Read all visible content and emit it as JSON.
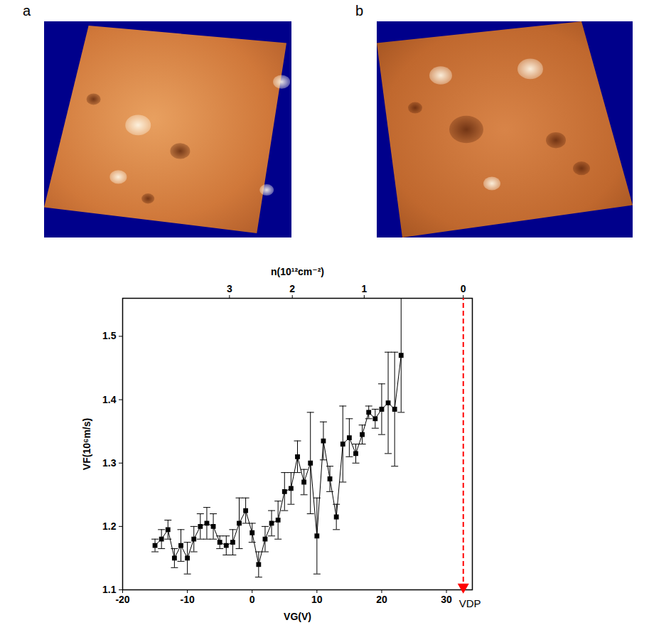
{
  "panels": [
    {
      "label": "a"
    },
    {
      "label": "b"
    }
  ],
  "chart_data": {
    "type": "scatter",
    "xlabel": "VG(V)",
    "ylabel": "VF(10⁶m/s)",
    "x2label": "n(10¹²cm⁻²)",
    "xlim": [
      -20,
      34
    ],
    "xticks": [
      -20,
      -10,
      0,
      10,
      20,
      30
    ],
    "x2ticks": [
      {
        "value": -3.5,
        "label": "3"
      },
      {
        "value": 6.2,
        "label": "2"
      },
      {
        "value": 17.3,
        "label": "1"
      },
      {
        "value": 32.6,
        "label": "0"
      }
    ],
    "ylim": [
      1.1,
      1.56
    ],
    "yticks": [
      1.1,
      1.2,
      1.3,
      1.4,
      1.5
    ],
    "series": [
      {
        "name": "VF",
        "color": "#000000",
        "marker": "square",
        "line_style": "solid",
        "x": [
          -15,
          -14,
          -13,
          -12,
          -11,
          -10,
          -9,
          -8,
          -7,
          -6,
          -5,
          -4,
          -3,
          -2,
          -1,
          0,
          1,
          2,
          3,
          4,
          5,
          6,
          7,
          8,
          9,
          10,
          11,
          12,
          13,
          14,
          15,
          16,
          17,
          18,
          19,
          20,
          21,
          22,
          23
        ],
        "values": [
          1.17,
          1.18,
          1.195,
          1.15,
          1.17,
          1.15,
          1.18,
          1.2,
          1.205,
          1.2,
          1.175,
          1.17,
          1.175,
          1.205,
          1.225,
          1.19,
          1.14,
          1.18,
          1.205,
          1.21,
          1.255,
          1.26,
          1.31,
          1.27,
          1.3,
          1.185,
          1.335,
          1.275,
          1.215,
          1.33,
          1.34,
          1.315,
          1.345,
          1.38,
          1.37,
          1.385,
          1.395,
          1.385,
          1.47
        ],
        "error": [
          0.01,
          0.015,
          0.015,
          0.015,
          0.025,
          0.025,
          0.02,
          0.02,
          0.025,
          0.02,
          0.01,
          0.015,
          0.02,
          0.04,
          0.02,
          0.015,
          0.02,
          0.02,
          0.02,
          0.03,
          0.03,
          0.025,
          0.025,
          0.02,
          0.08,
          0.06,
          0.03,
          0.02,
          0.02,
          0.06,
          0.03,
          0.015,
          0.015,
          0.01,
          0.015,
          0.04,
          0.08,
          0.09,
          0.09
        ]
      }
    ],
    "annotations": [
      {
        "x": 32.6,
        "text": "VDP",
        "color": "#ff0000",
        "line_style": "dashed"
      }
    ]
  }
}
